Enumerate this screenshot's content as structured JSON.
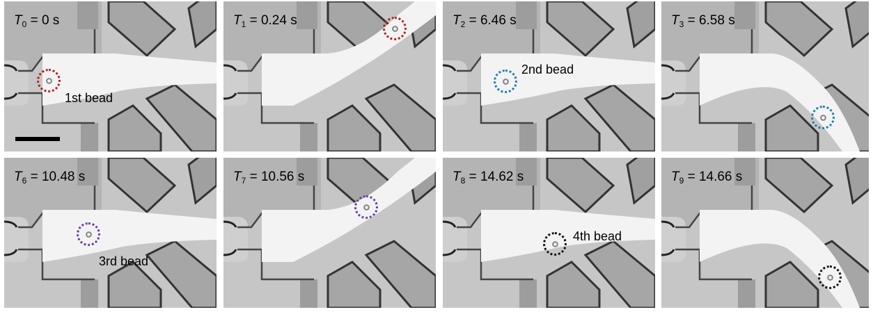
{
  "panels": [
    {
      "name": "panel-t0",
      "sub": "0",
      "value": "0 s",
      "label": "1st bead",
      "color": "#b22222",
      "flow": "center"
    },
    {
      "name": "panel-t1",
      "sub": "1",
      "value": "0.24 s",
      "label": "",
      "color": "#b22222",
      "flow": "up"
    },
    {
      "name": "panel-t2",
      "sub": "2",
      "value": "6.46 s",
      "label": "2nd bead",
      "color": "#1e7fb0",
      "flow": "center"
    },
    {
      "name": "panel-t3",
      "sub": "3",
      "value": "6.58 s",
      "label": "",
      "color": "#1e7fb0",
      "flow": "down"
    },
    {
      "name": "panel-t6",
      "sub": "6",
      "value": "10.48 s",
      "label": "3rd bead",
      "color": "#6a3da8",
      "flow": "center"
    },
    {
      "name": "panel-t7",
      "sub": "7",
      "value": "10.56 s",
      "label": "",
      "color": "#6a3da8",
      "flow": "up"
    },
    {
      "name": "panel-t8",
      "sub": "8",
      "value": "14.62 s",
      "label": "4th bead",
      "color": "#111111",
      "flow": "center"
    },
    {
      "name": "panel-t9",
      "sub": "9",
      "value": "14.66 s",
      "label": "",
      "color": "#111111",
      "flow": "down"
    }
  ],
  "time_symbol": "T",
  "eq": " = "
}
